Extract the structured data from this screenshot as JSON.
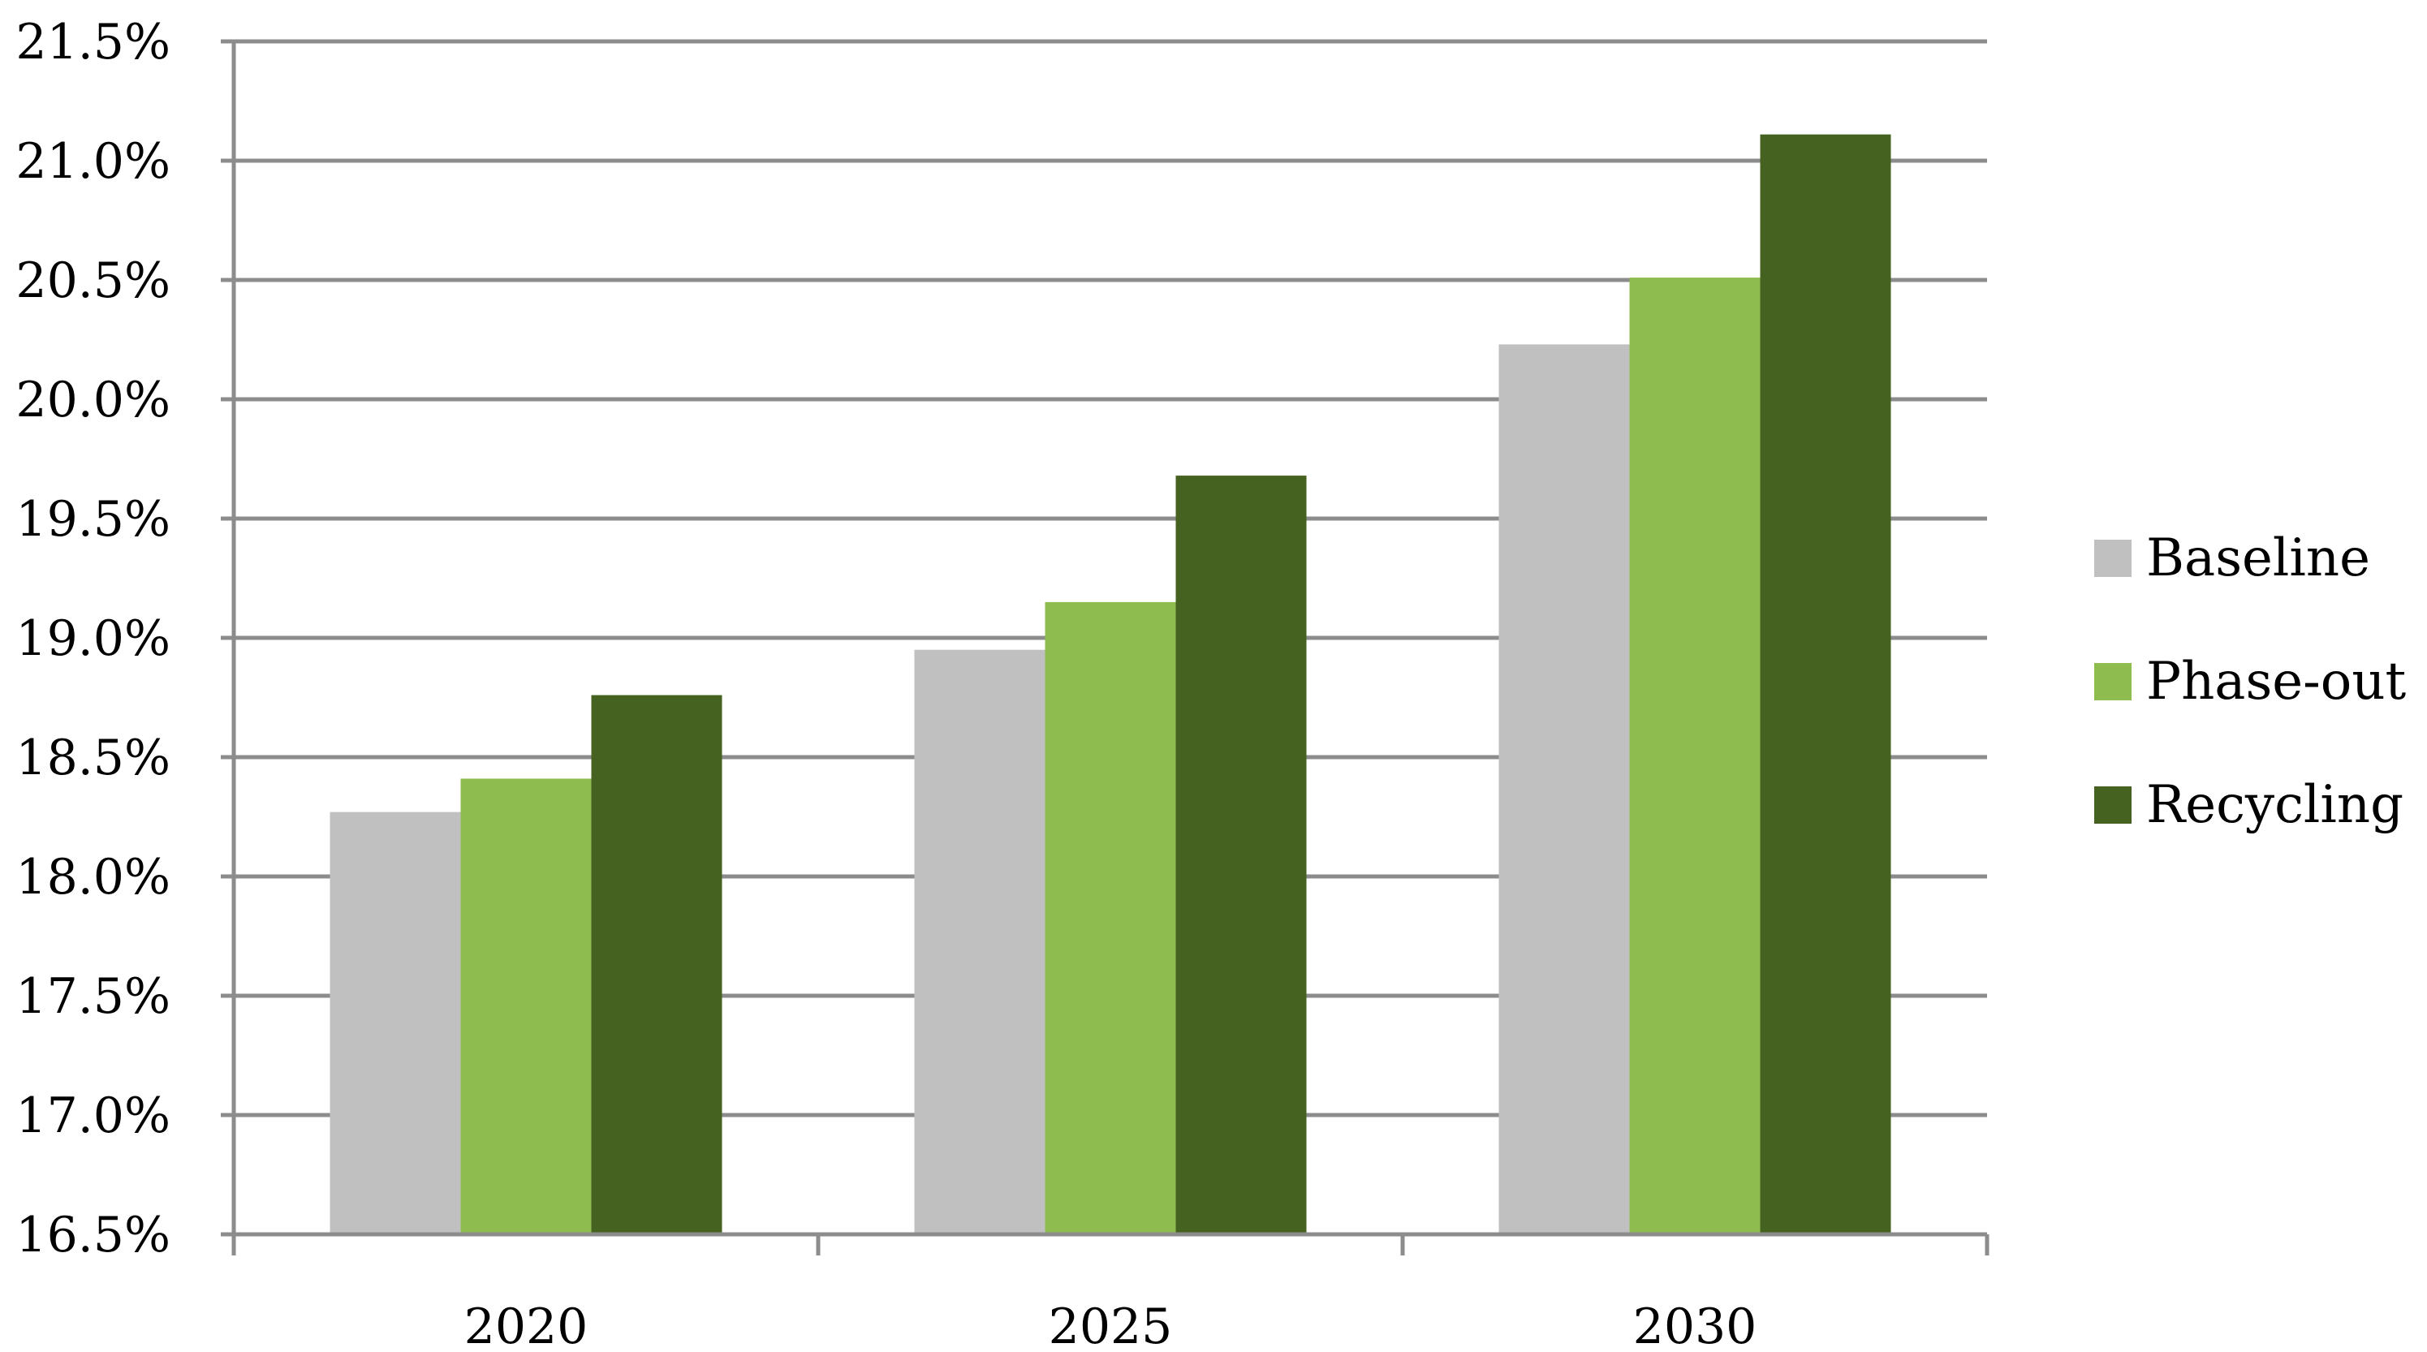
{
  "chart_data": {
    "type": "bar",
    "categories": [
      "2020",
      "2025",
      "2030"
    ],
    "series": [
      {
        "name": "Baseline",
        "values": [
          18.27,
          18.95,
          20.23
        ],
        "color": "#c0c0c0"
      },
      {
        "name": "Phase-out",
        "values": [
          18.41,
          19.15,
          20.51
        ],
        "color": "#8fbc4f"
      },
      {
        "name": "Recycling",
        "values": [
          18.76,
          19.68,
          21.11
        ],
        "color": "#456220"
      }
    ],
    "ylim": [
      16.5,
      21.5
    ],
    "ytick_step": 0.5,
    "ytick_labels": [
      "16.5%",
      "17.0%",
      "17.5%",
      "18.0%",
      "18.5%",
      "19.0%",
      "19.5%",
      "20.0%",
      "20.5%",
      "21.0%",
      "21.5%"
    ],
    "title": "",
    "xlabel": "",
    "ylabel": "",
    "grid": true,
    "legend_position": "right",
    "axis_color": "#8c8c8c",
    "grid_color": "#8c8c8c"
  }
}
